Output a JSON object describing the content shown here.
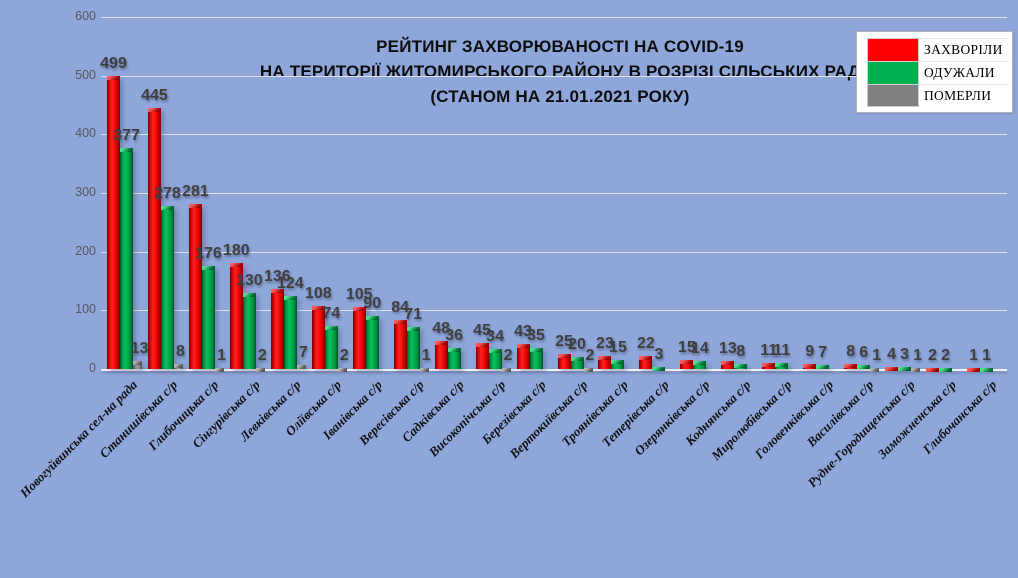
{
  "chart_data": {
    "type": "bar",
    "title_lines": [
      "РЕЙТИНГ ЗАХВОРЮВАНОСТІ НА COVID-19",
      "НА ТЕРИТОРІЇ ЖИТОМИРСЬКОГО РАЙОНУ В РОЗРІЗІ СІЛЬСЬКИХ РАД",
      "(СТАНОМ НА 21.01.2021 РОКУ)"
    ],
    "legend_position": "top-right",
    "grid": true,
    "ylim": [
      0,
      600
    ],
    "y_ticks": [
      0,
      100,
      200,
      300,
      400,
      500,
      600
    ],
    "categories": [
      "Новогуйвинська сел-на рада",
      "Станишівська с/р",
      "Глибочицька с/р",
      "Сінгурівська с/р",
      "Левківська с/р",
      "Оліївська с/р",
      "Іванівська с/р",
      "Вересівська с/р",
      "Садківська с/р",
      "Високопічська с/р",
      "Березівська с/р",
      "Вертокиївська с/р",
      "Троянівська с/р",
      "Тетерівська с/р",
      "Озерянківська с/р",
      "Коднянська с/р",
      "Миролюбівська с/р",
      "Головенківська с/р",
      "Василівська с/р",
      "Рудне-Городищенська с/р",
      "Заможненська с/р",
      "Глибочанська с/р"
    ],
    "series": [
      {
        "name": "ЗАХВОРІЛИ",
        "color": "#FF0000",
        "values": [
          499,
          445,
          281,
          180,
          136,
          108,
          105,
          84,
          48,
          45,
          43,
          25,
          23,
          22,
          15,
          13,
          11,
          9,
          8,
          4,
          2,
          1
        ]
      },
      {
        "name": "ОДУЖАЛИ",
        "color": "#00B050",
        "values": [
          377,
          278,
          176,
          130,
          124,
          74,
          90,
          71,
          36,
          34,
          35,
          20,
          15,
          3,
          14,
          8,
          11,
          7,
          6,
          3,
          2,
          1
        ]
      },
      {
        "name": "ПОМЕРЛИ",
        "color": "#808080",
        "values": [
          13,
          8,
          1,
          2,
          7,
          2,
          null,
          1,
          null,
          2,
          null,
          2,
          null,
          null,
          null,
          null,
          null,
          null,
          1,
          1,
          null,
          null
        ]
      }
    ]
  },
  "colors": {
    "background": "#8EA6DA",
    "gridline": "#DDE3F0",
    "tick_label": "#575757",
    "value_label": "#3F3F3F",
    "title": "#0D0D0D"
  }
}
